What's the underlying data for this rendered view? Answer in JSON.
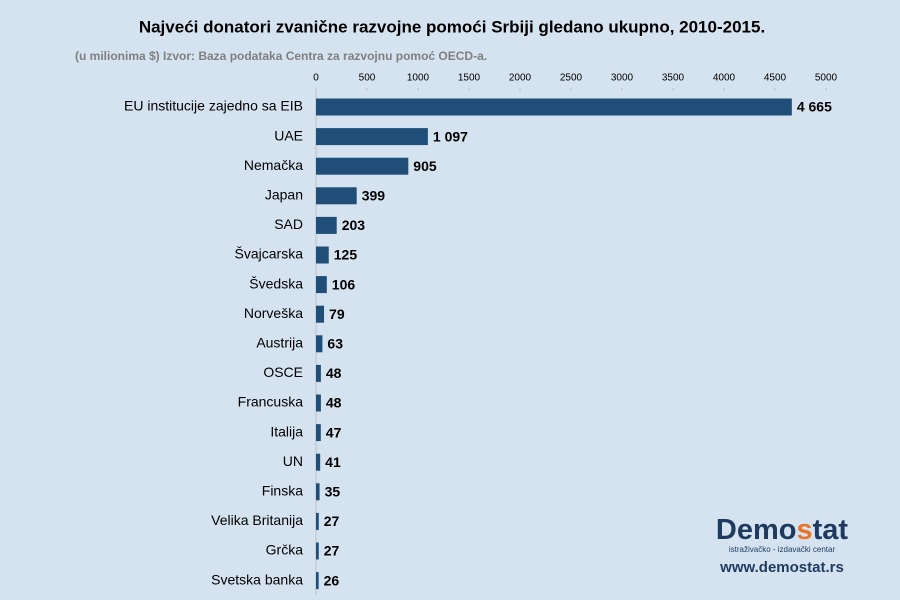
{
  "chart_data": {
    "type": "bar",
    "orientation": "horizontal",
    "title": "Najveći donatori zvanične razvojne pomoći Srbiji gledano ukupno, 2010-2015.",
    "subtitle": "(u milionima $) Izvor: Baza podataka Centra za razvojnu pomoć OECD-a.",
    "categories": [
      "EU institucije zajedno sa EIB",
      "UAE",
      "Nemačka",
      "Japan",
      "SAD",
      "Švajcarska",
      "Švedska",
      "Norveška",
      "Austrija",
      "OSCE",
      "Francuska",
      "Italija",
      "UN",
      "Finska",
      "Velika Britanija",
      "Grčka",
      "Svetska banka"
    ],
    "values": [
      4665,
      1097,
      905,
      399,
      203,
      125,
      106,
      79,
      63,
      48,
      48,
      47,
      41,
      35,
      27,
      27,
      26
    ],
    "value_labels": [
      "4 665",
      "1 097",
      "905",
      "399",
      "203",
      "125",
      "106",
      "79",
      "63",
      "48",
      "48",
      "47",
      "41",
      "35",
      "27",
      "27",
      "26"
    ],
    "color": "#1f4e79",
    "xlim": [
      0,
      5000
    ],
    "xticks": [
      0,
      500,
      1000,
      1500,
      2000,
      2500,
      3000,
      3500,
      4000,
      4500,
      5000
    ],
    "grid": false
  },
  "logo": {
    "name_parts": [
      "Demo",
      "s",
      "tat"
    ],
    "tagline": "istraživačko - izdavački centar",
    "url": "www.demostat.rs"
  }
}
